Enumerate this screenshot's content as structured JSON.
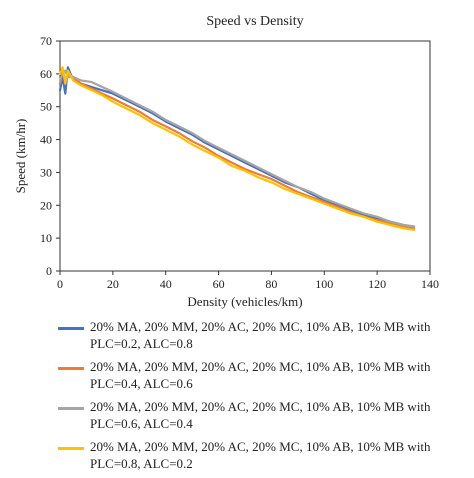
{
  "chart_data": {
    "type": "line",
    "title": "Speed vs Density",
    "xlabel": "Density (vehicles/km)",
    "ylabel": "Speed (km/hr)",
    "xlim": [
      0,
      140
    ],
    "ylim": [
      0,
      70
    ],
    "xticks": [
      0,
      20,
      40,
      60,
      80,
      100,
      120,
      140
    ],
    "yticks": [
      0,
      10,
      20,
      30,
      40,
      50,
      60,
      70
    ],
    "grid": false,
    "legend_position": "bottom",
    "series": [
      {
        "name": "20% MA, 20% MM, 20% AC, 20% MC, 10% AB, 10% MB with PLC=0.2, ALC=0.8",
        "color": "#4472C4",
        "x": [
          0,
          1,
          2,
          3,
          5,
          8,
          12,
          16,
          20,
          25,
          30,
          35,
          40,
          45,
          50,
          55,
          60,
          65,
          70,
          75,
          80,
          85,
          90,
          95,
          100,
          105,
          110,
          115,
          120,
          125,
          130,
          134
        ],
        "y": [
          55,
          59,
          54,
          62,
          58,
          57,
          56,
          55,
          54,
          52,
          50,
          48,
          45.5,
          43.5,
          41.5,
          39,
          37,
          35,
          33,
          31,
          29,
          27,
          25.5,
          23.5,
          21.5,
          20,
          18.5,
          17,
          16,
          15,
          14,
          13.5
        ]
      },
      {
        "name": "20% MA, 20% MM, 20% AC, 20% MC, 10% AB, 10% MB with PLC=0.4, ALC=0.6",
        "color": "#ED7D31",
        "x": [
          0,
          1,
          2,
          3,
          5,
          8,
          12,
          16,
          20,
          25,
          30,
          35,
          40,
          45,
          50,
          55,
          60,
          65,
          70,
          75,
          80,
          85,
          90,
          95,
          100,
          105,
          110,
          115,
          120,
          125,
          130,
          134
        ],
        "y": [
          57,
          61,
          58,
          60,
          59,
          57,
          55.5,
          54,
          52.5,
          50.5,
          48.5,
          46,
          44,
          42,
          39.5,
          37.5,
          35,
          33,
          31,
          29.5,
          28,
          26,
          24,
          22.5,
          21,
          19.5,
          18,
          16.5,
          15.5,
          14.5,
          13.5,
          13
        ]
      },
      {
        "name": "20% MA, 20% MM, 20% AC, 20% MC, 10% AB, 10% MB with PLC=0.6, ALC=0.4",
        "color": "#A5A5A5",
        "x": [
          0,
          1,
          2,
          3,
          5,
          8,
          12,
          16,
          20,
          25,
          30,
          35,
          40,
          45,
          50,
          55,
          60,
          65,
          70,
          75,
          80,
          85,
          90,
          95,
          100,
          105,
          110,
          115,
          120,
          125,
          130,
          134
        ],
        "y": [
          58,
          60,
          61,
          59,
          59,
          58,
          57.5,
          56,
          54.5,
          52.5,
          50.5,
          48.5,
          46,
          44,
          42,
          39.5,
          37.5,
          35.5,
          33.5,
          31.5,
          29.5,
          27.5,
          25.5,
          24,
          22,
          20.5,
          19,
          17.5,
          16.5,
          15,
          14,
          13.5
        ]
      },
      {
        "name": "20% MA, 20% MM, 20% AC, 20% MC, 10% AB, 10% MB with PLC=0.8, ALC=0.2",
        "color": "#FFC000",
        "x": [
          0,
          1,
          2,
          3,
          5,
          8,
          12,
          16,
          20,
          25,
          30,
          35,
          40,
          45,
          50,
          55,
          60,
          65,
          70,
          75,
          80,
          85,
          90,
          95,
          100,
          105,
          110,
          115,
          120,
          125,
          130,
          134
        ],
        "y": [
          60,
          62,
          57,
          61,
          58,
          56.5,
          55,
          53.5,
          51.5,
          49.5,
          47.5,
          45,
          43,
          41,
          38.5,
          36.5,
          34.5,
          32,
          30.5,
          28.5,
          27,
          25,
          23.5,
          22,
          20.5,
          19,
          17.5,
          16.5,
          15,
          14,
          13,
          12.5
        ]
      }
    ]
  }
}
